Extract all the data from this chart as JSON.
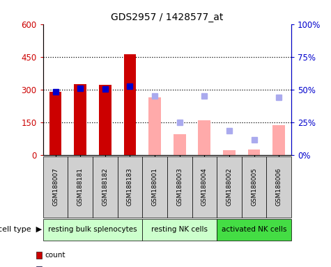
{
  "title": "GDS2957 / 1428577_at",
  "samples": [
    "GSM188007",
    "GSM188181",
    "GSM188182",
    "GSM188183",
    "GSM188001",
    "GSM188003",
    "GSM188004",
    "GSM188002",
    "GSM188005",
    "GSM188006"
  ],
  "cell_groups": [
    {
      "label": "resting bulk splenocytes",
      "start": 0,
      "end": 4,
      "color": "#ccffcc"
    },
    {
      "label": "resting NK cells",
      "start": 4,
      "end": 7,
      "color": "#ccffcc"
    },
    {
      "label": "activated NK cells",
      "start": 7,
      "end": 10,
      "color": "#44dd44"
    }
  ],
  "count_values": [
    290,
    325,
    320,
    460,
    null,
    null,
    null,
    null,
    null,
    null
  ],
  "percentile_values": [
    290,
    305,
    302,
    315,
    null,
    null,
    null,
    null,
    null,
    null
  ],
  "absent_value_values": [
    null,
    null,
    null,
    null,
    265,
    95,
    160,
    20,
    25,
    135
  ],
  "absent_rank_values": [
    null,
    null,
    null,
    null,
    270,
    148,
    270,
    112,
    68,
    265
  ],
  "ylim": [
    0,
    600
  ],
  "y2lim": [
    0,
    100
  ],
  "yticks": [
    0,
    150,
    300,
    450,
    600
  ],
  "ytick_labels": [
    "0",
    "150",
    "300",
    "450",
    "600"
  ],
  "y2ticks": [
    0,
    25,
    50,
    75,
    100
  ],
  "y2tick_labels": [
    "0%",
    "25%",
    "50%",
    "75%",
    "100%"
  ],
  "count_color": "#cc0000",
  "percentile_color": "#0000cc",
  "absent_value_color": "#ffaaaa",
  "absent_rank_color": "#aaaaee",
  "sample_bg_color": "#d0d0d0",
  "bar_width": 0.5,
  "marker_size": 6,
  "figsize": [
    4.75,
    3.84
  ],
  "dpi": 100
}
